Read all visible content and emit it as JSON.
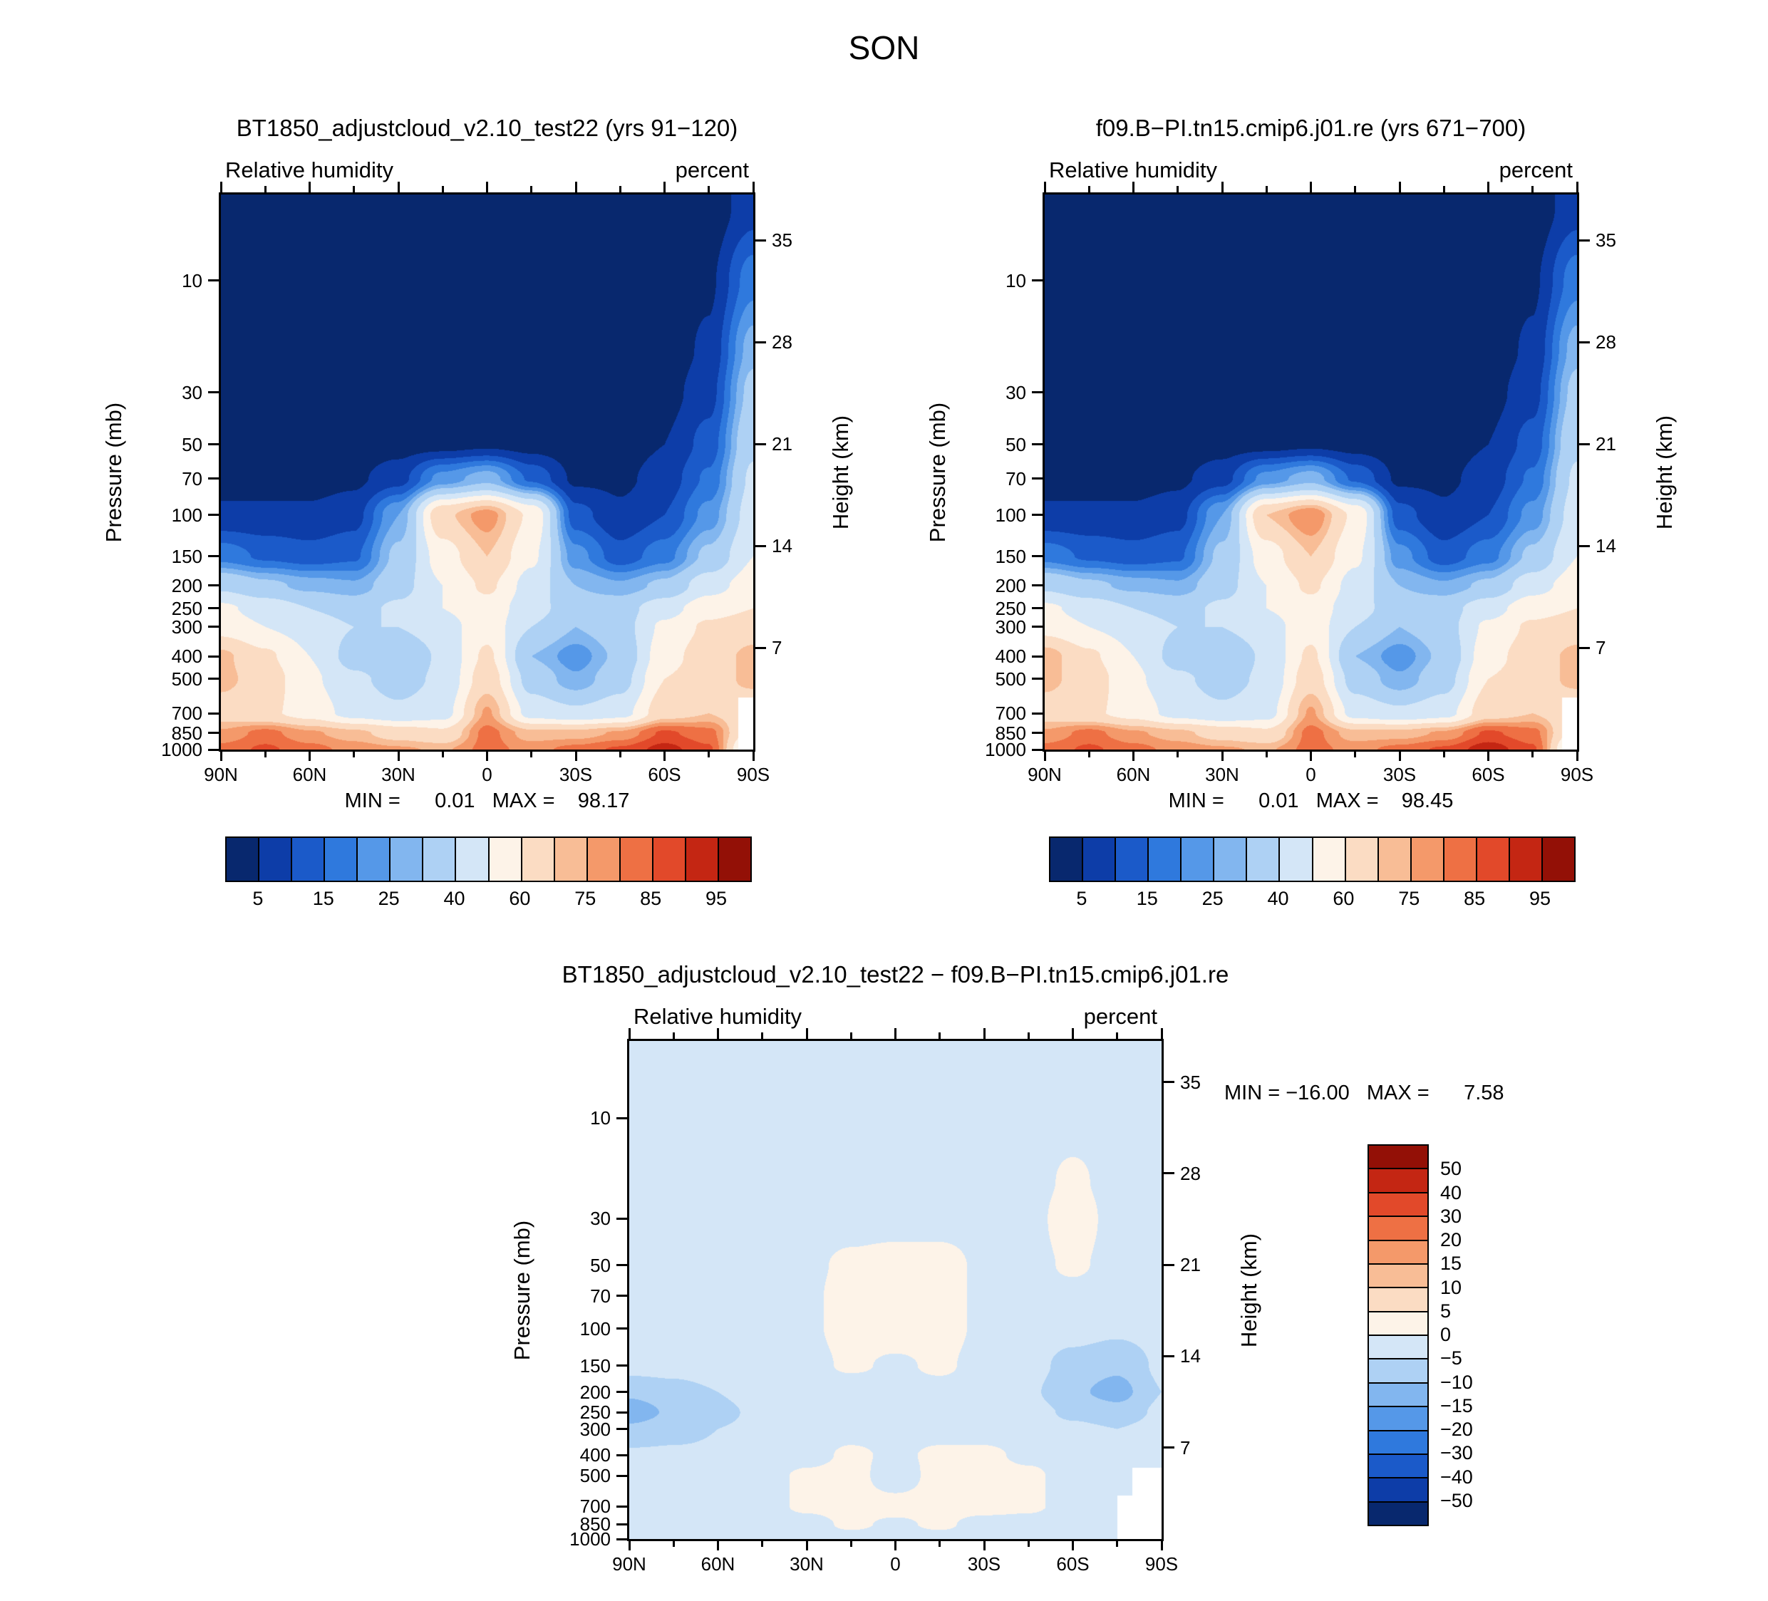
{
  "page_title": "SON",
  "axes": {
    "pressure_label": "Pressure (mb)",
    "height_label": "Height (km)",
    "pressure_ticks": [
      "10",
      "30",
      "50",
      "70",
      "100",
      "150",
      "200",
      "250",
      "300",
      "400",
      "500",
      "700",
      "850",
      "1000"
    ],
    "pressure_tick_values": [
      10,
      30,
      50,
      70,
      100,
      150,
      200,
      250,
      300,
      400,
      500,
      700,
      850,
      1000
    ],
    "height_ticks": [
      "35",
      "28",
      "21",
      "14",
      "7"
    ],
    "height_tick_values": [
      35,
      28,
      21,
      14,
      7
    ],
    "lat_ticks": [
      "90N",
      "60N",
      "30N",
      "0",
      "30S",
      "60S",
      "90S"
    ]
  },
  "rh_colorbar": {
    "labels": [
      "5",
      "15",
      "25",
      "40",
      "60",
      "75",
      "85",
      "95"
    ],
    "levels": [
      5,
      10,
      15,
      20,
      25,
      30,
      40,
      50,
      60,
      70,
      75,
      80,
      85,
      90,
      95
    ],
    "palette": [
      "#08286e",
      "#0d3da8",
      "#1b5ac9",
      "#2f79dd",
      "#5598e8",
      "#82b6ef",
      "#aed1f4",
      "#d4e6f7",
      "#fdf3e8",
      "#fbdcc3",
      "#f8bd96",
      "#f4996a",
      "#ee7044",
      "#e2492a",
      "#c42613",
      "#931006"
    ]
  },
  "diff_colorbar": {
    "labels": [
      "50",
      "40",
      "30",
      "20",
      "15",
      "10",
      "5",
      "0",
      "−5",
      "−10",
      "−15",
      "−20",
      "−30",
      "−40",
      "−50"
    ],
    "levels": [
      50,
      40,
      30,
      20,
      15,
      10,
      5,
      0,
      -5,
      -10,
      -15,
      -20,
      -30,
      -40,
      -50
    ],
    "palette": [
      "#931006",
      "#c42613",
      "#e2492a",
      "#ee7044",
      "#f4996a",
      "#f8bd96",
      "#fbdcc3",
      "#fdf3e8",
      "#d4e6f7",
      "#aed1f4",
      "#82b6ef",
      "#5598e8",
      "#2f79dd",
      "#1b5ac9",
      "#0d3da8",
      "#08286e"
    ]
  },
  "panels": [
    {
      "title": "BT1850_adjustcloud_v2.10_test22 (yrs 91−120)",
      "field": "Relative humidity",
      "units": "percent",
      "stats": "MIN =      0.01   MAX =    98.17"
    },
    {
      "title": "f09.B−PI.tn15.cmip6.j01.re (yrs 671−700)",
      "field": "Relative humidity",
      "units": "percent",
      "stats": "MIN =      0.01   MAX =    98.45"
    },
    {
      "title": "BT1850_adjustcloud_v2.10_test22 − f09.B−PI.tn15.cmip6.j01.re",
      "field": "Relative humidity",
      "units": "percent",
      "stats": "MIN = −16.00   MAX =      7.58"
    }
  ],
  "chart_data": [
    {
      "type": "heatmap",
      "title": "BT1850_adjustcloud_v2.10_test22 (yrs 91−120)",
      "variable": "Relative humidity",
      "units": "percent",
      "xlabel": "Latitude",
      "ylabel": "Pressure (mb)",
      "ylabel_right": "Height (km)",
      "min": 0.01,
      "max": 98.17,
      "contour_levels": [
        5,
        10,
        15,
        20,
        25,
        30,
        40,
        50,
        60,
        70,
        75,
        80,
        85,
        90,
        95
      ],
      "x": [
        90,
        75,
        60,
        45,
        30,
        15,
        0,
        -15,
        -30,
        -45,
        -60,
        -75,
        -90
      ],
      "y": [
        5,
        10,
        20,
        30,
        50,
        70,
        100,
        150,
        200,
        250,
        300,
        400,
        500,
        700,
        850,
        1000
      ],
      "values": [
        [
          1,
          1,
          1,
          1,
          1,
          1,
          1,
          1,
          1,
          1,
          1,
          2,
          8
        ],
        [
          1,
          1,
          1,
          1,
          1,
          1,
          1,
          1,
          1,
          1,
          2,
          4,
          18
        ],
        [
          1,
          1,
          1,
          1,
          1,
          1,
          1,
          1,
          1,
          1,
          2,
          6,
          28
        ],
        [
          2,
          2,
          2,
          2,
          2,
          2,
          2,
          2,
          2,
          2,
          3,
          8,
          33
        ],
        [
          2,
          2,
          2,
          2,
          3,
          3,
          4,
          3,
          2,
          3,
          5,
          12,
          38
        ],
        [
          3,
          3,
          3,
          4,
          8,
          22,
          28,
          14,
          4,
          4,
          7,
          16,
          42
        ],
        [
          6,
          6,
          6,
          8,
          25,
          68,
          78,
          58,
          12,
          6,
          10,
          22,
          45
        ],
        [
          18,
          14,
          12,
          14,
          32,
          55,
          70,
          52,
          22,
          12,
          18,
          32,
          50
        ],
        [
          38,
          32,
          28,
          26,
          36,
          50,
          62,
          46,
          30,
          26,
          32,
          46,
          55
        ],
        [
          52,
          46,
          40,
          36,
          42,
          50,
          56,
          44,
          34,
          36,
          46,
          56,
          60
        ],
        [
          56,
          50,
          46,
          40,
          40,
          46,
          56,
          40,
          30,
          36,
          52,
          62,
          66
        ],
        [
          72,
          62,
          50,
          36,
          30,
          42,
          62,
          30,
          22,
          32,
          56,
          66,
          72
        ],
        [
          72,
          66,
          52,
          42,
          36,
          42,
          66,
          36,
          26,
          36,
          60,
          66,
          72
        ],
        [
          66,
          62,
          56,
          46,
          42,
          46,
          76,
          46,
          42,
          46,
          66,
          70,
          62
        ],
        [
          76,
          82,
          76,
          72,
          66,
          62,
          82,
          72,
          72,
          76,
          86,
          82,
          55
        ],
        [
          82,
          86,
          82,
          78,
          76,
          74,
          82,
          78,
          82,
          86,
          92,
          86,
          40
        ]
      ]
    },
    {
      "type": "heatmap",
      "title": "f09.B−PI.tn15.cmip6.j01.re (yrs 671−700)",
      "variable": "Relative humidity",
      "units": "percent",
      "xlabel": "Latitude",
      "ylabel": "Pressure (mb)",
      "ylabel_right": "Height (km)",
      "min": 0.01,
      "max": 98.45,
      "contour_levels": [
        5,
        10,
        15,
        20,
        25,
        30,
        40,
        50,
        60,
        70,
        75,
        80,
        85,
        90,
        95
      ],
      "x": [
        90,
        75,
        60,
        45,
        30,
        15,
        0,
        -15,
        -30,
        -45,
        -60,
        -75,
        -90
      ],
      "y": [
        5,
        10,
        20,
        30,
        50,
        70,
        100,
        150,
        200,
        250,
        300,
        400,
        500,
        700,
        850,
        1000
      ],
      "values": [
        [
          1,
          1,
          1,
          1,
          1,
          1,
          1,
          1,
          1,
          1,
          1,
          2,
          8
        ],
        [
          1,
          1,
          1,
          1,
          1,
          1,
          1,
          1,
          1,
          1,
          2,
          4,
          18
        ],
        [
          1,
          1,
          1,
          1,
          1,
          1,
          1,
          1,
          1,
          1,
          2,
          6,
          28
        ],
        [
          2,
          2,
          2,
          2,
          2,
          2,
          2,
          2,
          2,
          2,
          3,
          8,
          33
        ],
        [
          2,
          2,
          2,
          2,
          3,
          3,
          4,
          3,
          2,
          3,
          5,
          12,
          38
        ],
        [
          3,
          3,
          3,
          4,
          8,
          22,
          28,
          14,
          4,
          4,
          7,
          16,
          42
        ],
        [
          6,
          6,
          6,
          8,
          25,
          70,
          80,
          58,
          12,
          6,
          10,
          22,
          45
        ],
        [
          18,
          14,
          12,
          14,
          32,
          55,
          70,
          52,
          22,
          12,
          18,
          32,
          50
        ],
        [
          38,
          32,
          28,
          26,
          36,
          50,
          62,
          46,
          30,
          26,
          32,
          46,
          55
        ],
        [
          52,
          46,
          40,
          36,
          42,
          50,
          56,
          44,
          34,
          36,
          46,
          56,
          60
        ],
        [
          56,
          50,
          46,
          40,
          40,
          46,
          56,
          40,
          30,
          36,
          52,
          62,
          66
        ],
        [
          74,
          62,
          50,
          36,
          30,
          42,
          62,
          30,
          22,
          32,
          56,
          66,
          72
        ],
        [
          72,
          66,
          52,
          42,
          36,
          42,
          66,
          36,
          26,
          36,
          60,
          66,
          72
        ],
        [
          66,
          62,
          56,
          46,
          42,
          46,
          76,
          46,
          42,
          46,
          66,
          70,
          62
        ],
        [
          76,
          82,
          76,
          72,
          66,
          62,
          82,
          72,
          72,
          76,
          86,
          82,
          55
        ],
        [
          82,
          86,
          82,
          78,
          76,
          74,
          82,
          78,
          82,
          86,
          93,
          86,
          40
        ]
      ]
    },
    {
      "type": "heatmap",
      "title": "BT1850_adjustcloud_v2.10_test22 − f09.B−PI.tn15.cmip6.j01.re",
      "variable": "Relative humidity difference",
      "units": "percent",
      "xlabel": "Latitude",
      "ylabel": "Pressure (mb)",
      "ylabel_right": "Height (km)",
      "min": -16.0,
      "max": 7.58,
      "contour_levels": [
        -50,
        -40,
        -30,
        -20,
        -15,
        -10,
        -5,
        0,
        5,
        10,
        15,
        20,
        30,
        40,
        50
      ],
      "x": [
        90,
        75,
        60,
        45,
        30,
        15,
        0,
        -15,
        -30,
        -45,
        -60,
        -75,
        -90
      ],
      "y": [
        5,
        10,
        20,
        30,
        50,
        70,
        100,
        150,
        200,
        250,
        300,
        400,
        500,
        700,
        850,
        1000
      ],
      "values": [
        [
          -2,
          -2,
          -2,
          -2,
          -2,
          -2,
          -2,
          -2,
          -2,
          -2,
          -2,
          -2,
          -2
        ],
        [
          -2,
          -2,
          -2,
          -2,
          -2,
          -2,
          -2,
          -2,
          -2,
          -2,
          -2,
          -2,
          -2
        ],
        [
          -2,
          -2,
          -2,
          -2,
          -2,
          -2,
          -2,
          -2,
          -2,
          -2,
          1,
          -2,
          -2
        ],
        [
          -2,
          -2,
          -2,
          -2,
          -2,
          -2,
          -2,
          -2,
          -2,
          -2,
          3,
          -2,
          -2
        ],
        [
          -2,
          -2,
          -2,
          -2,
          -1,
          1,
          2,
          2,
          -1,
          -2,
          1,
          -2,
          -2
        ],
        [
          -2,
          -2,
          -2,
          -2,
          -1,
          2,
          3,
          2,
          -1,
          -2,
          -2,
          -3,
          -2
        ],
        [
          -2,
          -2,
          -2,
          -2,
          -1,
          2,
          3,
          2,
          -1,
          -2,
          -3,
          -4,
          -3
        ],
        [
          -3,
          -3,
          -2,
          -2,
          -2,
          1,
          -1,
          1,
          -2,
          -3,
          -7,
          -9,
          -4
        ],
        [
          -9,
          -7,
          -5,
          -3,
          -2,
          -4,
          -2,
          -2,
          -2,
          -4,
          -9,
          -12,
          -5
        ],
        [
          -13,
          -9,
          -6,
          -4,
          -2,
          -2,
          -3,
          -2,
          -2,
          -3,
          -6,
          -8,
          -4
        ],
        [
          -9,
          -7,
          -5,
          -4,
          -2,
          -2,
          -2,
          -2,
          -2,
          -2,
          -4,
          -5,
          -3
        ],
        [
          -4,
          -4,
          -4,
          -3,
          -2,
          1,
          -1,
          1,
          1,
          -1,
          -2,
          -3,
          -2
        ],
        [
          -3,
          -3,
          -3,
          -2,
          1,
          2,
          -3,
          2,
          2,
          1,
          -2,
          -2,
          -2
        ],
        [
          -2,
          -2,
          -2,
          -2,
          1,
          2,
          2,
          2,
          2,
          1,
          -2,
          -3,
          1
        ],
        [
          -2,
          -3,
          -2,
          -2,
          -2,
          1,
          -1,
          1,
          -2,
          -2,
          -3,
          -2,
          1
        ],
        [
          -2,
          -2,
          -2,
          -2,
          -2,
          -2,
          -2,
          -2,
          -2,
          -2,
          -2,
          -2,
          1
        ]
      ]
    }
  ]
}
